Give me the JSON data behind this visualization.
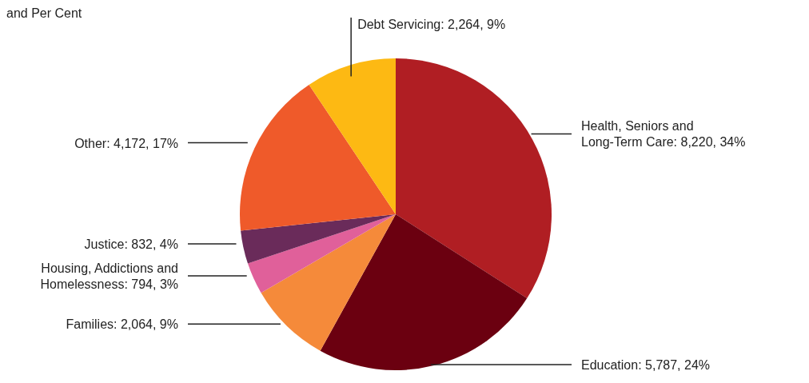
{
  "chart_data": {
    "type": "pie",
    "title": "and Per Cent",
    "categories": [
      "Health, Seniors and Long-Term Care",
      "Education",
      "Families",
      "Housing, Addictions and Homelessness",
      "Justice",
      "Other",
      "Debt Servicing"
    ],
    "values": [
      8220,
      5787,
      2064,
      794,
      832,
      4172,
      2264
    ],
    "value_labels": [
      "8,220, 34%",
      "5,787, 24%",
      "2,064, 9%",
      "794, 3%",
      "832, 4%",
      "4,172, 17%",
      "2,264, 9%"
    ],
    "colors": [
      "#b01e23",
      "#6b0010",
      "#f58a3a",
      "#e0609a",
      "#6a2b5a",
      "#ef5a2a",
      "#fdb913"
    ]
  }
}
